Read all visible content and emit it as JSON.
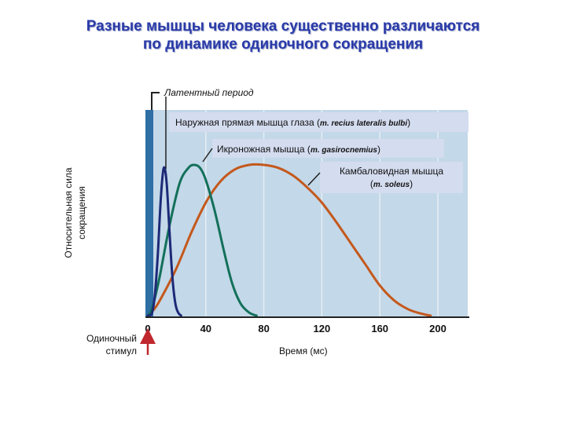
{
  "title": {
    "line1": "Разные мышцы человека существенно различаются",
    "line2": "по динамике одиночного сокращения"
  },
  "colors": {
    "title": "#2a3aa8",
    "plot_bg": "#c3d8e8",
    "stimulus_band": "#2e6fa6",
    "eye_muscle": "#1c2a78",
    "gastrocnemius": "#13705a",
    "soleus": "#c4581c",
    "label_box": "#d4dcef",
    "arrow": "#c0282e"
  },
  "chart_data": {
    "type": "line",
    "xlabel": "Время (мс)",
    "ylabel": [
      "Относительная сила",
      "сокращения"
    ],
    "xlim": [
      0,
      210
    ],
    "ylim": [
      0,
      1
    ],
    "x_ticks": [
      0,
      40,
      80,
      120,
      160,
      200
    ],
    "grid": true,
    "latent_period_label": "Латентный период",
    "stimulus_label": [
      "Одиночный",
      "стимул"
    ],
    "series": [
      {
        "key": "eye",
        "label_parts": [
          "Наружная прямая мышца глаза (",
          "m. recius lateralis bulbi",
          ")"
        ],
        "x": [
          0,
          3,
          5,
          7,
          9,
          11,
          13,
          15,
          17,
          19,
          21,
          23
        ],
        "y": [
          0,
          0.02,
          0.15,
          0.42,
          0.78,
          0.98,
          0.88,
          0.55,
          0.25,
          0.08,
          0.02,
          0
        ]
      },
      {
        "key": "gastro",
        "label_parts": [
          "Икроножная мышца (",
          "m. gasirocnemius",
          ")"
        ],
        "x": [
          0,
          3,
          8,
          15,
          22,
          28,
          32,
          36,
          40,
          46,
          52,
          58,
          64,
          70,
          75
        ],
        "y": [
          0,
          0.05,
          0.25,
          0.6,
          0.88,
          0.98,
          1.0,
          0.98,
          0.9,
          0.7,
          0.45,
          0.22,
          0.08,
          0.02,
          0
        ]
      },
      {
        "key": "soleus",
        "label_line1": "Камбаловидная мышца",
        "label_line2_parts": [
          "(",
          "m. soleus",
          ")"
        ],
        "x": [
          0,
          5,
          10,
          20,
          30,
          40,
          50,
          60,
          70,
          80,
          90,
          100,
          110,
          120,
          130,
          140,
          150,
          160,
          170,
          180,
          190,
          195
        ],
        "y": [
          0,
          0.05,
          0.13,
          0.32,
          0.55,
          0.75,
          0.89,
          0.97,
          1.0,
          1.0,
          0.98,
          0.93,
          0.85,
          0.75,
          0.62,
          0.48,
          0.34,
          0.2,
          0.1,
          0.04,
          0.01,
          0
        ]
      }
    ]
  }
}
